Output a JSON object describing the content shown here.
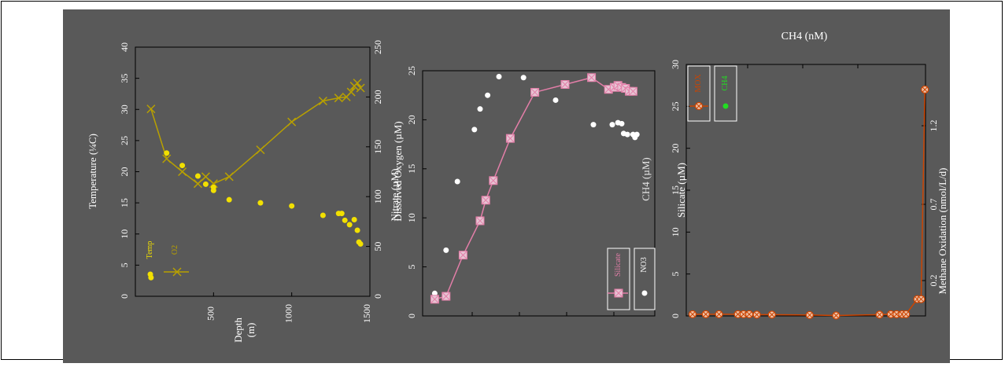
{
  "colors": {
    "background": "#595959",
    "axis": "#000000",
    "temp": "#f2e000",
    "o2": "#b8a000",
    "silicate": "#e37ea8",
    "no3": "#ffffff",
    "mox": "#cc4400",
    "ch4": "#22dd22"
  },
  "panel1": {
    "ylabel_left": "Temperature (¼C)",
    "ylabel_right": "Dissolved Oxygen (µM)",
    "xlabel_line1": "Depth",
    "xlabel_line2": "(m)",
    "left_ticks": [
      "0",
      "5",
      "10",
      "15",
      "20",
      "25",
      "30",
      "35",
      "40"
    ],
    "right_ticks": [
      "0",
      "50",
      "100",
      "150",
      "200",
      "250"
    ],
    "x_ticks": [
      "500",
      "1000",
      "1500"
    ],
    "legend_temp": "Temp",
    "legend_o2": "O2"
  },
  "panel2": {
    "ylabel_left": "Nitrate (µM)",
    "ylabel_right": "CH4 (µM)",
    "left_ticks": [
      "0",
      "5",
      "10",
      "15",
      "20",
      "25"
    ],
    "legend_silicate": "Silicate",
    "legend_no3": "NO3"
  },
  "panel3": {
    "title": "CH4 (nM)",
    "ylabel_left": "Silicate (µM)",
    "ylabel_right": "Methane Oxidation (nmol/L/d)",
    "left_ticks": [
      "0",
      "5",
      "10",
      "15",
      "20",
      "25",
      "30"
    ],
    "right_ticks": [
      "0.2",
      "0.7",
      "1.2"
    ],
    "legend_mox": "MOX",
    "legend_ch4": "CH4"
  },
  "chart_data": [
    {
      "type": "scatter",
      "xlabel": "Depth (m)",
      "ylabel": "Temperature (¼C)",
      "y2label": "Dissolved Oxygen (µM)",
      "xlim": [
        0,
        1500
      ],
      "ylim": [
        0,
        40
      ],
      "y2lim": [
        0,
        250
      ],
      "series": [
        {
          "name": "Temp",
          "axis": "left",
          "x": [
            100,
            200,
            300,
            400,
            450,
            500,
            500,
            600,
            800,
            1000,
            1200,
            1300,
            1320,
            1340,
            1370,
            1400,
            1420,
            1430,
            1440
          ],
          "y": [
            3,
            23,
            21,
            19.3,
            18,
            17.5,
            17,
            15.5,
            15,
            14.5,
            13,
            13.3,
            13.3,
            12.2,
            11.5,
            12.3,
            10.6,
            8.7,
            8.4
          ]
        },
        {
          "name": "O2",
          "axis": "right",
          "x": [
            100,
            200,
            300,
            400,
            450,
            500,
            600,
            800,
            1000,
            1200,
            1300,
            1350,
            1380,
            1400,
            1420,
            1440
          ],
          "y": [
            188,
            138,
            125,
            113,
            120,
            113,
            120,
            147,
            175,
            196,
            199,
            200,
            205,
            211,
            214,
            209
          ]
        }
      ]
    },
    {
      "type": "scatter",
      "ylabel": "Nitrate (µM)",
      "y2label": "CH4 (µM)",
      "ylim": [
        0,
        25
      ],
      "series": [
        {
          "name": "Silicate",
          "x": [
            10,
            70,
            160,
            250,
            280,
            320,
            410,
            540,
            700,
            840,
            930,
            960,
            980,
            1000,
            1020,
            1040,
            1060
          ],
          "y": [
            1.7,
            2,
            6.2,
            9.7,
            11.8,
            13.8,
            18.1,
            22.8,
            23.6,
            24.3,
            23.1,
            23.3,
            23.5,
            23.3,
            23.2,
            22.9,
            22.9
          ]
        },
        {
          "name": "NO3",
          "x": [
            10,
            70,
            130,
            220,
            250,
            290,
            350,
            480,
            650,
            850,
            950,
            980,
            1000,
            1010,
            1030,
            1060,
            1070,
            1080
          ],
          "y": [
            2.3,
            6.7,
            13.7,
            19,
            21.1,
            22.5,
            24.4,
            24.3,
            22,
            19.5,
            19.5,
            19.7,
            19.6,
            18.6,
            18.5,
            18.5,
            18.2,
            18.5
          ]
        }
      ]
    },
    {
      "type": "line",
      "title": "CH4 (nM)",
      "ylabel": "Silicate (µM)",
      "y2label": "Methane Oxidation (nmol/L/d)",
      "ylim": [
        0,
        30
      ],
      "series": [
        {
          "name": "MOX",
          "x": [
            0,
            70,
            140,
            240,
            270,
            300,
            340,
            420,
            620,
            760,
            990,
            1050,
            1080,
            1110,
            1130,
            1190,
            1210,
            1230
          ],
          "y": [
            0.2,
            0.2,
            0.2,
            0.2,
            0.2,
            0.2,
            0.15,
            0.15,
            0.1,
            0.05,
            0.15,
            0.2,
            0.2,
            0.2,
            0.2,
            2,
            2,
            27
          ]
        }
      ]
    }
  ]
}
